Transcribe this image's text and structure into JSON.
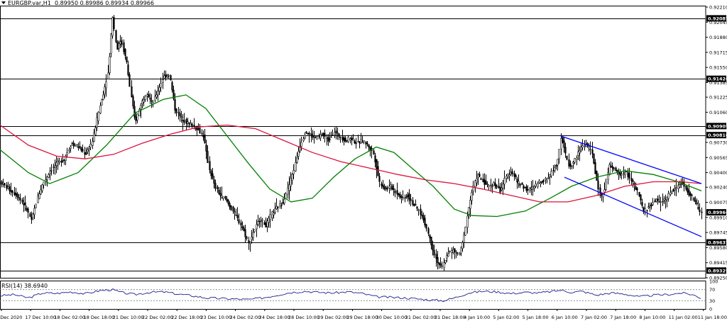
{
  "header": {
    "symbol": "EURGBP.var,H1",
    "ohlc": "0.89950 0.89986 0.89934 0.89966"
  },
  "rsi_panel": {
    "label": "RSI(14) 38.6940"
  },
  "colors": {
    "candle": "#000000",
    "ma_fast": "#008000",
    "ma_slow": "#dc143c",
    "channel": "#0000ff",
    "rsi": "#1e1e8c",
    "level_lines": "#000000"
  },
  "chart_data": {
    "type": "candlestick",
    "symbol": "EURGBP.var",
    "timeframe": "H1",
    "ylim": [
      0.8925,
      0.9221
    ],
    "y_ticks": [
      0.9221,
      0.92045,
      0.9188,
      0.91715,
      0.9155,
      0.91385,
      0.91225,
      0.9106,
      0.90895,
      0.9073,
      0.90565,
      0.904,
      0.9024,
      0.90075,
      0.8991,
      0.89745,
      0.8958,
      0.89415,
      0.8925
    ],
    "x_ticks": [
      "6 Dec 2020",
      "17 Dec 10:00",
      "18 Dec 02:00",
      "18 Dec 18:00",
      "21 Dec 10:00",
      "22 Dec 02:00",
      "22 Dec 18:00",
      "23 Dec 10:00",
      "24 Dec 02:00",
      "24 Dec 18:00",
      "28 Dec 10:00",
      "29 Dec 02:00",
      "29 Dec 18:00",
      "30 Dec 10:00",
      "31 Dec 02:00",
      "31 Dec 18:00",
      "4 Jan 10:00",
      "5 Jan 02:00",
      "5 Jan 18:00",
      "6 Jan 10:00",
      "7 Jan 02:00",
      "7 Jan 18:00",
      "8 Jan 10:00",
      "11 Jan 02:00",
      "11 Jan 18:00"
    ],
    "price_levels": [
      0.92087,
      0.91426,
      0.90909,
      0.9081,
      0.89637,
      0.89329
    ],
    "current_price": 0.89966,
    "series_path": [
      [
        0,
        0.903
      ],
      [
        12,
        0.9022
      ],
      [
        24,
        0.9015
      ],
      [
        36,
        0.9002
      ],
      [
        44,
        0.8987
      ],
      [
        52,
        0.9012
      ],
      [
        60,
        0.9028
      ],
      [
        70,
        0.9042
      ],
      [
        80,
        0.905
      ],
      [
        90,
        0.9055
      ],
      [
        100,
        0.9072
      ],
      [
        110,
        0.9068
      ],
      [
        120,
        0.906
      ],
      [
        130,
        0.9075
      ],
      [
        138,
        0.9105
      ],
      [
        146,
        0.913
      ],
      [
        152,
        0.915
      ],
      [
        158,
        0.9212
      ],
      [
        164,
        0.9175
      ],
      [
        170,
        0.9185
      ],
      [
        178,
        0.916
      ],
      [
        184,
        0.9125
      ],
      [
        190,
        0.9095
      ],
      [
        198,
        0.9115
      ],
      [
        206,
        0.9128
      ],
      [
        214,
        0.9115
      ],
      [
        222,
        0.913
      ],
      [
        230,
        0.9145
      ],
      [
        238,
        0.9148
      ],
      [
        246,
        0.911
      ],
      [
        254,
        0.91
      ],
      [
        262,
        0.9095
      ],
      [
        270,
        0.9092
      ],
      [
        278,
        0.9088
      ],
      [
        286,
        0.908
      ],
      [
        294,
        0.9045
      ],
      [
        302,
        0.9025
      ],
      [
        310,
        0.9015
      ],
      [
        318,
        0.901
      ],
      [
        326,
        0.9
      ],
      [
        334,
        0.899
      ],
      [
        342,
        0.8978
      ],
      [
        350,
        0.8962
      ],
      [
        358,
        0.8978
      ],
      [
        366,
        0.899
      ],
      [
        374,
        0.8982
      ],
      [
        382,
        0.8995
      ],
      [
        390,
        0.9002
      ],
      [
        398,
        0.9008
      ],
      [
        406,
        0.9025
      ],
      [
        414,
        0.9045
      ],
      [
        422,
        0.907
      ],
      [
        430,
        0.9085
      ],
      [
        438,
        0.908
      ],
      [
        446,
        0.9078
      ],
      [
        454,
        0.9082
      ],
      [
        462,
        0.9075
      ],
      [
        470,
        0.9085
      ],
      [
        478,
        0.908
      ],
      [
        486,
        0.9075
      ],
      [
        494,
        0.9078
      ],
      [
        502,
        0.9072
      ],
      [
        510,
        0.9075
      ],
      [
        518,
        0.907
      ],
      [
        526,
        0.906
      ],
      [
        534,
        0.903
      ],
      [
        542,
        0.9022
      ],
      [
        550,
        0.9025
      ],
      [
        558,
        0.9018
      ],
      [
        566,
        0.9012
      ],
      [
        574,
        0.9015
      ],
      [
        582,
        0.9005
      ],
      [
        590,
        0.8998
      ],
      [
        598,
        0.8985
      ],
      [
        606,
        0.8965
      ],
      [
        614,
        0.8945
      ],
      [
        622,
        0.8935
      ],
      [
        630,
        0.8952
      ],
      [
        638,
        0.8955
      ],
      [
        646,
        0.895
      ],
      [
        652,
        0.8965
      ],
      [
        658,
        0.8995
      ],
      [
        664,
        0.9018
      ],
      [
        672,
        0.9038
      ],
      [
        680,
        0.903
      ],
      [
        688,
        0.9025
      ],
      [
        696,
        0.9028
      ],
      [
        704,
        0.902
      ],
      [
        712,
        0.9035
      ],
      [
        720,
        0.9042
      ],
      [
        728,
        0.903
      ],
      [
        736,
        0.9025
      ],
      [
        744,
        0.902
      ],
      [
        752,
        0.9025
      ],
      [
        760,
        0.903
      ],
      [
        768,
        0.9032
      ],
      [
        776,
        0.904
      ],
      [
        784,
        0.905
      ],
      [
        790,
        0.908
      ],
      [
        796,
        0.906
      ],
      [
        802,
        0.9045
      ],
      [
        810,
        0.9055
      ],
      [
        818,
        0.9068
      ],
      [
        826,
        0.9072
      ],
      [
        834,
        0.906
      ],
      [
        840,
        0.903
      ],
      [
        846,
        0.9012
      ],
      [
        852,
        0.9025
      ],
      [
        858,
        0.9048
      ],
      [
        866,
        0.9042
      ],
      [
        874,
        0.9038
      ],
      [
        882,
        0.904
      ],
      [
        890,
        0.903
      ],
      [
        898,
        0.9018
      ],
      [
        906,
        0.8998
      ],
      [
        914,
        0.9002
      ],
      [
        922,
        0.901
      ],
      [
        930,
        0.9008
      ],
      [
        938,
        0.9012
      ],
      [
        946,
        0.902
      ],
      [
        954,
        0.9025
      ],
      [
        960,
        0.903
      ],
      [
        966,
        0.902
      ],
      [
        972,
        0.9015
      ],
      [
        978,
        0.901
      ],
      [
        984,
        0.8998
      ],
      [
        988,
        0.8996
      ]
    ],
    "series": [
      {
        "values_path": [
          [
            0,
            0.9065
          ],
          [
            40,
            0.904
          ],
          [
            70,
            0.9028
          ],
          [
            110,
            0.904
          ],
          [
            150,
            0.907
          ],
          [
            190,
            0.9105
          ],
          [
            230,
            0.912
          ],
          [
            262,
            0.9125
          ],
          [
            290,
            0.911
          ],
          [
            320,
            0.908
          ],
          [
            350,
            0.905
          ],
          [
            380,
            0.9022
          ],
          [
            410,
            0.9008
          ],
          [
            440,
            0.9012
          ],
          [
            470,
            0.9035
          ],
          [
            500,
            0.9055
          ],
          [
            530,
            0.9068
          ],
          [
            555,
            0.9062
          ],
          [
            580,
            0.9045
          ],
          [
            610,
            0.9025
          ],
          [
            640,
            0.9
          ],
          [
            665,
            0.8993
          ],
          [
            700,
            0.8992
          ],
          [
            740,
            0.8998
          ],
          [
            775,
            0.9012
          ],
          [
            805,
            0.9025
          ],
          [
            840,
            0.9035
          ],
          [
            880,
            0.9042
          ],
          [
            920,
            0.9038
          ],
          [
            955,
            0.903
          ],
          [
            988,
            0.902
          ]
        ]
      },
      {
        "values_path": [
          [
            0,
            0.9092
          ],
          [
            40,
            0.907
          ],
          [
            80,
            0.9058
          ],
          [
            120,
            0.9055
          ],
          [
            160,
            0.906
          ],
          [
            200,
            0.9072
          ],
          [
            240,
            0.9082
          ],
          [
            280,
            0.909
          ],
          [
            320,
            0.9092
          ],
          [
            360,
            0.9088
          ],
          [
            400,
            0.9075
          ],
          [
            440,
            0.9062
          ],
          [
            480,
            0.9052
          ],
          [
            520,
            0.9045
          ],
          [
            560,
            0.9038
          ],
          [
            600,
            0.9032
          ],
          [
            640,
            0.9028
          ],
          [
            680,
            0.9022
          ],
          [
            720,
            0.9015
          ],
          [
            760,
            0.9008
          ],
          [
            800,
            0.9008
          ],
          [
            840,
            0.9015
          ],
          [
            880,
            0.9025
          ],
          [
            920,
            0.903
          ],
          [
            960,
            0.903
          ],
          [
            988,
            0.9028
          ]
        ]
      }
    ],
    "channel": {
      "upper": [
        [
          790,
          0.908
        ],
        [
          988,
          0.9028
        ]
      ],
      "lower": [
        [
          795,
          0.9035
        ],
        [
          988,
          0.897
        ]
      ]
    },
    "rsi": {
      "period": 14,
      "last": 38.694,
      "ylim": [
        0,
        100
      ],
      "ticks": [
        100,
        70,
        30,
        0
      ],
      "levels": [
        70,
        30
      ],
      "values_path": [
        [
          0,
          48
        ],
        [
          20,
          52
        ],
        [
          40,
          40
        ],
        [
          60,
          58
        ],
        [
          80,
          56
        ],
        [
          100,
          62
        ],
        [
          120,
          55
        ],
        [
          140,
          66
        ],
        [
          158,
          70
        ],
        [
          170,
          60
        ],
        [
          190,
          52
        ],
        [
          210,
          60
        ],
        [
          230,
          62
        ],
        [
          250,
          54
        ],
        [
          270,
          48
        ],
        [
          290,
          40
        ],
        [
          310,
          38
        ],
        [
          330,
          36
        ],
        [
          350,
          34
        ],
        [
          370,
          40
        ],
        [
          390,
          50
        ],
        [
          410,
          60
        ],
        [
          430,
          64
        ],
        [
          450,
          60
        ],
        [
          470,
          58
        ],
        [
          490,
          62
        ],
        [
          510,
          56
        ],
        [
          530,
          44
        ],
        [
          550,
          42
        ],
        [
          570,
          40
        ],
        [
          590,
          36
        ],
        [
          610,
          32
        ],
        [
          625,
          30
        ],
        [
          640,
          40
        ],
        [
          660,
          58
        ],
        [
          680,
          64
        ],
        [
          700,
          62
        ],
        [
          720,
          56
        ],
        [
          740,
          60
        ],
        [
          760,
          58
        ],
        [
          780,
          64
        ],
        [
          790,
          68
        ],
        [
          805,
          60
        ],
        [
          820,
          64
        ],
        [
          840,
          50
        ],
        [
          860,
          58
        ],
        [
          880,
          54
        ],
        [
          900,
          44
        ],
        [
          920,
          50
        ],
        [
          940,
          52
        ],
        [
          960,
          58
        ],
        [
          975,
          52
        ],
        [
          988,
          39
        ]
      ]
    }
  }
}
